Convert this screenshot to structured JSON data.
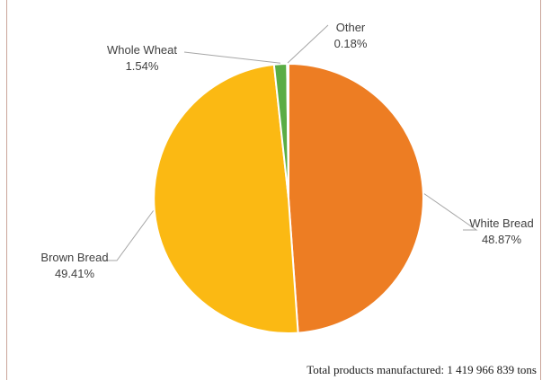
{
  "chart_data": {
    "type": "pie",
    "slices": [
      {
        "name": "White Bread",
        "value": 48.87,
        "label": "48.87%",
        "color": "#ed7d23"
      },
      {
        "name": "Brown Bread",
        "value": 49.41,
        "label": "49.41%",
        "color": "#fbb913"
      },
      {
        "name": "Whole Wheat",
        "value": 1.54,
        "label": "1.54%",
        "color": "#5aad45"
      },
      {
        "name": "Other",
        "value": 0.18,
        "label": "0.18%",
        "color": "#ffffff"
      }
    ],
    "footnote": "Total products manufactured: 1 419 966 839 tons"
  }
}
